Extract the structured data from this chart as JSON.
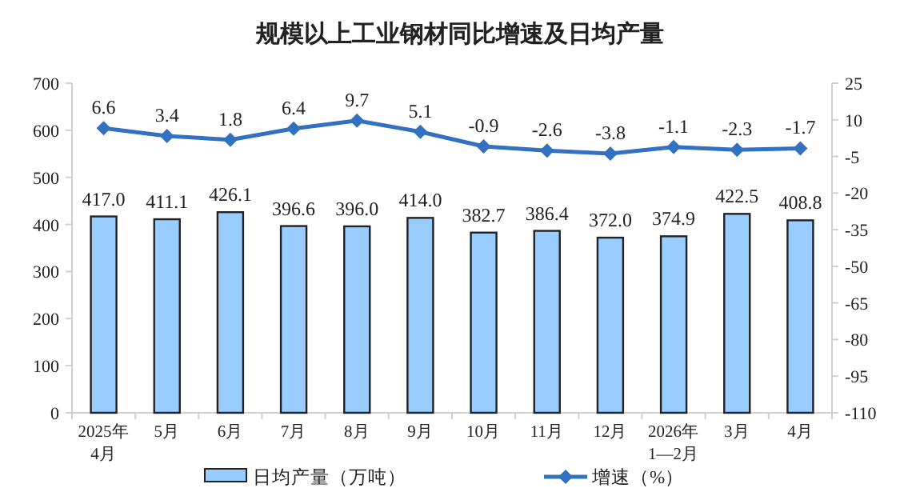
{
  "chart_data": {
    "type": "bar",
    "title": "规模以上工业钢材同比增速及日均产量",
    "categories": [
      "2025年\n4月",
      "5月",
      "6月",
      "7月",
      "8月",
      "9月",
      "10月",
      "11月",
      "12月",
      "2026年\n1—2月",
      "3月",
      "4月"
    ],
    "series": [
      {
        "name": "日均产量（万吨）",
        "color": "#99ccff",
        "values": [
          417.0,
          411.1,
          426.1,
          396.6,
          396.0,
          414.0,
          382.7,
          386.4,
          372.0,
          374.9,
          422.5,
          408.8
        ],
        "value_labels": [
          "417.0",
          "411.1",
          "426.1",
          "396.6",
          "396.0",
          "414.0",
          "382.7",
          "386.4",
          "372.0",
          "374.9",
          "422.5",
          "408.8"
        ]
      },
      {
        "name": "增速（%）",
        "type": "line",
        "axis": "y2",
        "color": "#3270c0",
        "marker": "diamond",
        "values": [
          6.6,
          3.4,
          1.8,
          6.4,
          9.7,
          5.1,
          -0.9,
          -2.6,
          -3.8,
          -1.1,
          -2.3,
          -1.7
        ],
        "value_labels": [
          "6.6",
          "3.4",
          "1.8",
          "6.4",
          "9.7",
          "5.1",
          "-0.9",
          "-2.6",
          "-3.8",
          "-1.1",
          "-2.3",
          "-1.7"
        ]
      }
    ],
    "ylim": [
      0,
      700
    ],
    "yticks": [
      0,
      100,
      200,
      300,
      400,
      500,
      600,
      700
    ],
    "y2lim": [
      -110,
      25
    ],
    "y2ticks": [
      -110,
      -95,
      -80,
      -65,
      -50,
      -35,
      -20,
      -5,
      10,
      25
    ],
    "legend": "bottom"
  }
}
